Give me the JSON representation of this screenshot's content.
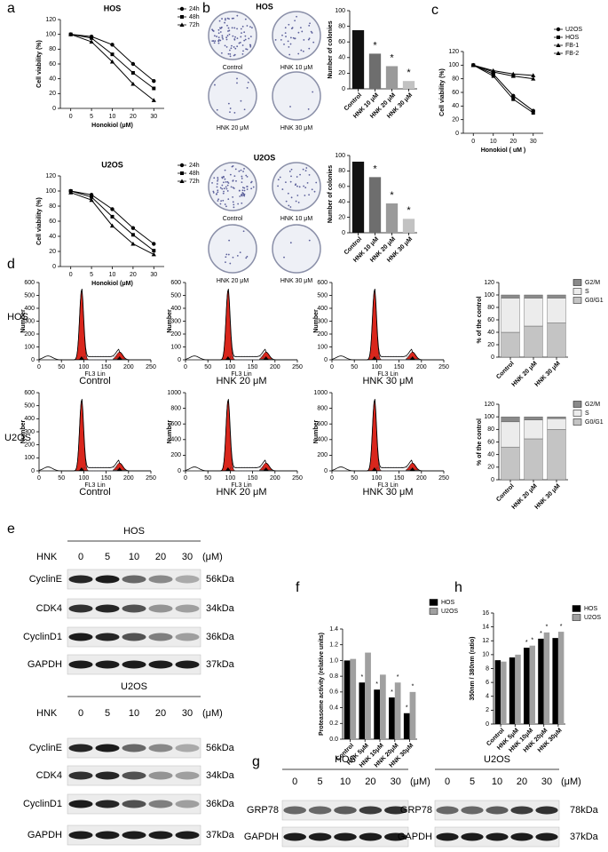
{
  "panel_letters": [
    "a",
    "b",
    "c",
    "d",
    "e",
    "f",
    "g",
    "h"
  ],
  "flow_rows": [
    "HOS",
    "U2OS"
  ],
  "colonies": [
    {
      "title": "HOS",
      "labels": [
        "Control",
        "HNK 10 μM",
        "HNK 20 μM",
        "HNK 30 μM"
      ]
    },
    {
      "title": "U2OS",
      "labels": [
        "Control",
        "HNK 10 μM",
        "HNK 20 μM",
        "HNK 30 μM"
      ]
    }
  ],
  "blots": [
    {
      "title": "HOS",
      "treatment": "HNK",
      "doses": [
        "0",
        "5",
        "10",
        "20",
        "30"
      ],
      "unit": "(μM)",
      "rows": [
        {
          "protein": "CyclinE",
          "size": "56kDa"
        },
        {
          "protein": "CDK4",
          "size": "34kDa"
        },
        {
          "protein": "CyclinD1",
          "size": "36kDa"
        },
        {
          "protein": "GAPDH",
          "size": "37kDa"
        }
      ]
    },
    {
      "title": "U2OS",
      "treatment": "HNK",
      "doses": [
        "0",
        "5",
        "10",
        "20",
        "30"
      ],
      "unit": "(μM)",
      "rows": [
        {
          "protein": "CyclinE",
          "size": "56kDa"
        },
        {
          "protein": "CDK4",
          "size": "34kDa"
        },
        {
          "protein": "CyclinD1",
          "size": "36kDa"
        },
        {
          "protein": "GAPDH",
          "size": "37kDa"
        }
      ]
    },
    {
      "title": "HOS",
      "doses": [
        "0",
        "5",
        "10",
        "20",
        "30"
      ],
      "unit": "(μM)",
      "rows": [
        {
          "protein": "GRP78"
        },
        {
          "protein": "GAPDH"
        }
      ]
    },
    {
      "title": "U2OS",
      "doses": [
        "0",
        "5",
        "10",
        "20",
        "30"
      ],
      "unit": "(μM)",
      "rows": [
        {
          "protein": "GRP78",
          "size": "78kDa"
        },
        {
          "protein": "GAPDH",
          "size": "37kDa"
        }
      ]
    }
  ],
  "chart_data": [
    {
      "type": "line",
      "title": "HOS",
      "xlabel": "Honokiol (μM)",
      "ylabel": "Cell viability (%)",
      "categories": [
        "0",
        "5",
        "10",
        "20",
        "30"
      ],
      "ylim": [
        0,
        120
      ],
      "yticks": [
        0,
        20,
        40,
        60,
        80,
        100,
        120
      ],
      "legend": "right",
      "series": [
        {
          "name": "24h",
          "color": "#000000",
          "marker": "circle",
          "values": [
            100,
            97,
            86,
            60,
            37
          ]
        },
        {
          "name": "48h",
          "color": "#000000",
          "marker": "square",
          "values": [
            100,
            95,
            73,
            48,
            27
          ]
        },
        {
          "name": "72h",
          "color": "#000000",
          "marker": "triangle",
          "values": [
            100,
            90,
            63,
            33,
            11
          ]
        }
      ]
    },
    {
      "type": "line",
      "title": "U2OS",
      "xlabel": "Honokiol (μM)",
      "ylabel": "Cell viability (%)",
      "categories": [
        "0",
        "5",
        "10",
        "20",
        "30"
      ],
      "ylim": [
        0,
        120
      ],
      "yticks": [
        0,
        20,
        40,
        60,
        80,
        100,
        120
      ],
      "legend": "right",
      "series": [
        {
          "name": "24h",
          "color": "#000000",
          "marker": "circle",
          "values": [
            100,
            95,
            76,
            51,
            30
          ]
        },
        {
          "name": "48h",
          "color": "#000000",
          "marker": "square",
          "values": [
            100,
            92,
            66,
            42,
            21
          ]
        },
        {
          "name": "72h",
          "color": "#000000",
          "marker": "triangle",
          "values": [
            98,
            88,
            54,
            30,
            16
          ]
        }
      ]
    },
    {
      "type": "bar",
      "ylabel": "Number of colonies",
      "categories": [
        "Control",
        "HNK 10 μM",
        "HNK 20 μM",
        "HNK 30 μM"
      ],
      "values": [
        75,
        45,
        29,
        10
      ],
      "colors": [
        "#111111",
        "#6e6e6e",
        "#9a9a9a",
        "#c2c2c2"
      ],
      "ylim": [
        0,
        100
      ],
      "yticks": [
        0,
        20,
        40,
        60,
        80,
        100
      ],
      "annotations": [
        {
          "category": "HNK 10 μM",
          "text": "*"
        },
        {
          "category": "HNK 20 μM",
          "text": "*"
        },
        {
          "category": "HNK 30 μM",
          "text": "*"
        }
      ]
    },
    {
      "type": "bar",
      "ylabel": "Number of colonies",
      "categories": [
        "Control",
        "HNK 10 μM",
        "HNK 20 μM",
        "HNK 30 μM"
      ],
      "values": [
        92,
        72,
        38,
        18
      ],
      "colors": [
        "#111111",
        "#6e6e6e",
        "#9a9a9a",
        "#c2c2c2"
      ],
      "ylim": [
        0,
        100
      ],
      "yticks": [
        0,
        20,
        40,
        60,
        80,
        100
      ],
      "annotations": [
        {
          "category": "HNK 10 μM",
          "text": "*"
        },
        {
          "category": "HNK 20 μM",
          "text": "*"
        },
        {
          "category": "HNK 30 μM",
          "text": "*"
        }
      ]
    },
    {
      "type": "line",
      "xlabel": "Honokiol ( uM )",
      "ylabel": "Cell viability (%)",
      "categories": [
        "0",
        "10",
        "20",
        "30"
      ],
      "ylim": [
        0,
        120
      ],
      "yticks": [
        0,
        20,
        40,
        60,
        80,
        100,
        120
      ],
      "legend": "right",
      "series": [
        {
          "name": "U2OS",
          "color": "#000000",
          "marker": "circle",
          "values": [
            100,
            87,
            55,
            33
          ]
        },
        {
          "name": "HOS",
          "color": "#000000",
          "marker": "square",
          "values": [
            100,
            84,
            50,
            30
          ]
        },
        {
          "name": "FB-1",
          "color": "#000000",
          "marker": "triangle",
          "values": [
            100,
            92,
            87,
            85
          ]
        },
        {
          "name": "FB-2",
          "color": "#000000",
          "marker": "triangle",
          "values": [
            100,
            90,
            84,
            80
          ]
        }
      ]
    },
    {
      "type": "flow",
      "caption": "Control",
      "xlabel": "FL3 Lin",
      "ylabel": "Number",
      "xlim": [
        0,
        250
      ],
      "xticks": [
        0,
        50,
        100,
        150,
        200,
        250
      ],
      "ylim": [
        0,
        600
      ],
      "yticks": [
        0,
        100,
        200,
        300,
        400,
        500,
        600
      ]
    },
    {
      "type": "flow",
      "caption": "HNK 20 μM",
      "xlabel": "FL3 Lin",
      "ylabel": "Number",
      "xlim": [
        0,
        250
      ],
      "xticks": [
        0,
        50,
        100,
        150,
        200,
        250
      ],
      "ylim": [
        0,
        600
      ],
      "yticks": [
        0,
        100,
        200,
        300,
        400,
        500,
        600
      ]
    },
    {
      "type": "flow",
      "caption": "HNK 30 μM",
      "xlabel": "FL3 Lin",
      "ylabel": "Number",
      "xlim": [
        0,
        250
      ],
      "xticks": [
        0,
        50,
        100,
        150,
        200,
        250
      ],
      "ylim": [
        0,
        600
      ],
      "yticks": [
        0,
        100,
        200,
        300,
        400,
        500,
        600
      ]
    },
    {
      "type": "flow",
      "caption": "Control",
      "xlabel": "FL3 Lin",
      "ylabel": "Number",
      "xlim": [
        0,
        250
      ],
      "xticks": [
        0,
        50,
        100,
        150,
        200,
        250
      ],
      "ylim": [
        0,
        600
      ],
      "yticks": [
        0,
        100,
        200,
        300,
        400,
        500,
        600
      ]
    },
    {
      "type": "flow",
      "caption": "HNK 20 μM",
      "xlabel": "FL3 Lin",
      "ylabel": "Number",
      "xlim": [
        0,
        250
      ],
      "xticks": [
        0,
        50,
        100,
        150,
        200,
        250
      ],
      "ylim": [
        0,
        1000
      ],
      "yticks": [
        0,
        200,
        400,
        600,
        800,
        1000
      ]
    },
    {
      "type": "flow",
      "caption": "HNK 30 μM",
      "xlabel": "FL3 Lin",
      "ylabel": "Number",
      "xlim": [
        0,
        250
      ],
      "xticks": [
        0,
        50,
        100,
        150,
        200,
        250
      ],
      "ylim": [
        0,
        1000
      ],
      "yticks": [
        0,
        200,
        400,
        600,
        800,
        1000
      ]
    },
    {
      "type": "stacked",
      "ylabel": "% of the control",
      "categories": [
        "Control",
        "HNK 20 μM",
        "HNK 30 μM"
      ],
      "ylim": [
        0,
        120
      ],
      "yticks": [
        0,
        20,
        40,
        60,
        80,
        100,
        120
      ],
      "legend": "right",
      "series": [
        {
          "name": "G0/G1",
          "color": "#c4c4c4",
          "values": [
            40,
            50,
            55
          ]
        },
        {
          "name": "S",
          "color": "#ececec",
          "values": [
            55,
            45,
            40
          ]
        },
        {
          "name": "G2/M",
          "color": "#8a8a8a",
          "values": [
            5,
            5,
            5
          ]
        }
      ]
    },
    {
      "type": "stacked",
      "ylabel": "% of the control",
      "categories": [
        "Control",
        "HNK 20 μM",
        "HNK 30 μM"
      ],
      "ylim": [
        0,
        120
      ],
      "yticks": [
        0,
        20,
        40,
        60,
        80,
        100,
        120
      ],
      "legend": "right",
      "series": [
        {
          "name": "G0/G1",
          "color": "#c4c4c4",
          "values": [
            52,
            65,
            80
          ]
        },
        {
          "name": "S",
          "color": "#ececec",
          "values": [
            40,
            30,
            17
          ]
        },
        {
          "name": "G2/M",
          "color": "#8a8a8a",
          "values": [
            8,
            5,
            3
          ]
        }
      ]
    },
    {
      "type": "grouped",
      "ylabel": "Proteasome activity (relative units)",
      "categories": [
        "Control",
        "HNK 5μM",
        "HNK 10μM",
        "HNK 20μM",
        "HNK 30μM"
      ],
      "ylim": [
        0,
        1.4
      ],
      "yticks": [
        {
          "value": 0,
          "label": "0.0"
        },
        0.2,
        0.4,
        0.6,
        0.8,
        {
          "value": 1,
          "label": "1.0"
        },
        1.2,
        1.4
      ],
      "legend": "right",
      "series": [
        {
          "name": "HOS",
          "color": "#000000",
          "values": [
            1.0,
            0.72,
            0.63,
            0.53,
            0.33
          ]
        },
        {
          "name": "U2OS",
          "color": "#a0a0a0",
          "values": [
            1.02,
            1.1,
            0.82,
            0.72,
            0.6
          ]
        }
      ],
      "annotations": [
        {
          "series": "HOS",
          "category": "HNK 5μM",
          "text": "*"
        },
        {
          "series": "HOS",
          "category": "HNK 10μM",
          "text": "*"
        },
        {
          "series": "HOS",
          "category": "HNK 20μM",
          "text": "*"
        },
        {
          "series": "HOS",
          "category": "HNK 30μM",
          "text": "*"
        },
        {
          "series": "U2OS",
          "category": "HNK 20μM",
          "text": "*"
        },
        {
          "series": "U2OS",
          "category": "HNK 30μM",
          "text": "*"
        }
      ]
    },
    {
      "type": "grouped",
      "ylabel": "350nm / 380nm (ratio)",
      "categories": [
        "Control",
        "HNK 5μM",
        "HNK 10μM",
        "HNK 20μM",
        "HNK 30μM"
      ],
      "ylim": [
        0,
        16
      ],
      "yticks": [
        0,
        2,
        4,
        6,
        8,
        10,
        12,
        14,
        16
      ],
      "legend": "right",
      "series": [
        {
          "name": "HOS",
          "color": "#000000",
          "values": [
            9.2,
            9.6,
            11,
            12.3,
            12.4
          ]
        },
        {
          "name": "U2OS",
          "color": "#a0a0a0",
          "values": [
            9,
            10,
            11.3,
            13.2,
            13.3
          ]
        }
      ],
      "annotations": [
        {
          "series": "HOS",
          "category": "HNK 10μM",
          "text": "*"
        },
        {
          "series": "U2OS",
          "category": "HNK 10μM",
          "text": "*"
        },
        {
          "series": "HOS",
          "category": "HNK 20μM",
          "text": "*"
        },
        {
          "series": "U2OS",
          "category": "HNK 20μM",
          "text": "*"
        },
        {
          "series": "U2OS",
          "category": "HNK 30μM",
          "text": "*"
        }
      ]
    }
  ]
}
